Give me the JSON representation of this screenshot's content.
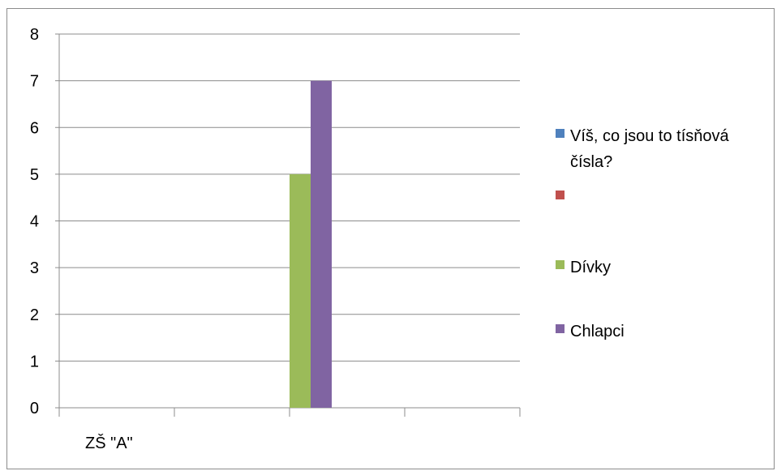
{
  "chart_data": {
    "type": "bar",
    "categories": [
      "ZŠ \"A\""
    ],
    "series": [
      {
        "name": "Víš, co jsou to tísňová čísla?",
        "color": "#4f81bd",
        "values": [
          0
        ]
      },
      {
        "name": "",
        "color": "#c0504d",
        "values": [
          0
        ]
      },
      {
        "name": "Dívky",
        "color": "#9bbb59",
        "values": [
          5
        ]
      },
      {
        "name": "Chlapci",
        "color": "#8064a2",
        "values": [
          7
        ]
      }
    ],
    "y_ticks": [
      "0",
      "1",
      "2",
      "3",
      "4",
      "5",
      "6",
      "7",
      "8"
    ],
    "ylim": [
      0,
      8
    ],
    "grid": true,
    "legend_position": "right",
    "legend_lines": [
      [
        "Víš, co jsou to tísňová",
        "čísla?"
      ],
      [],
      [
        "Dívky"
      ],
      [
        "Chlapci"
      ]
    ]
  }
}
